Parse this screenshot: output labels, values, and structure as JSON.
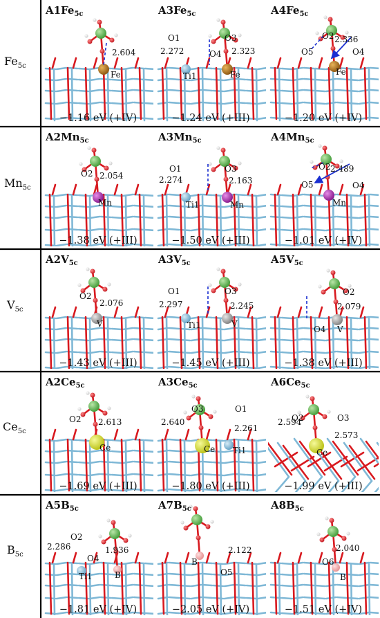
{
  "colors": {
    "oxygen": "#d8191f",
    "titanium": "#7fb8d6",
    "phosphorus": "#6bbf59",
    "hydrogen": "#f2f2f2",
    "fe": "#b5781c",
    "mn": "#b02fb4",
    "v": "#a8a8a8",
    "ce": "#d9e02a",
    "b": "#f4b6b6",
    "hbond": "#1a2fd1"
  },
  "rows": [
    {
      "label": {
        "main": "Fe",
        "sub": "5c"
      },
      "panels": [
        {
          "title": {
            "main": "A1Fe",
            "sub": "5c"
          },
          "energy": "−1.16 eV (+IV)",
          "metal": "fe",
          "atom_labels": [
            "Fe"
          ],
          "distances": [
            "2.604"
          ]
        },
        {
          "title": {
            "main": "A3Fe",
            "sub": "5c"
          },
          "energy": "−1.24 eV (+III)",
          "metal": "fe",
          "atom_labels": [
            "O1",
            "O3",
            "O4",
            "Ti1",
            "Fe"
          ],
          "distances": [
            "2.272",
            "2.323"
          ]
        },
        {
          "title": {
            "main": "A4Fe",
            "sub": "5c"
          },
          "energy": "−1.20 eV (+IV)",
          "metal": "fe",
          "atom_labels": [
            "O2",
            "O5",
            "O4",
            "Fe"
          ],
          "distances": [
            "2.336"
          ]
        }
      ]
    },
    {
      "label": {
        "main": "Mn",
        "sub": "5c"
      },
      "panels": [
        {
          "title": {
            "main": "A2Mn",
            "sub": "5c"
          },
          "energy": "−1.38 eV (+III)",
          "metal": "mn",
          "atom_labels": [
            "O2",
            "Mn"
          ],
          "distances": [
            "2.054"
          ]
        },
        {
          "title": {
            "main": "A3Mn",
            "sub": "5c"
          },
          "energy": "−1.50 eV (+III)",
          "metal": "mn",
          "atom_labels": [
            "O1",
            "O3",
            "Ti1",
            "Mn"
          ],
          "distances": [
            "2.274",
            "2.163"
          ]
        },
        {
          "title": {
            "main": "A4Mn",
            "sub": "5c"
          },
          "energy": "−1.01 eV (+IV)",
          "metal": "mn",
          "atom_labels": [
            "O2",
            "O5",
            "O4",
            "Mn"
          ],
          "distances": [
            "2.489"
          ]
        }
      ]
    },
    {
      "label": {
        "main": "V",
        "sub": "5c"
      },
      "panels": [
        {
          "title": {
            "main": "A2V",
            "sub": "5c"
          },
          "energy": "−1.43 eV (+III)",
          "metal": "v",
          "atom_labels": [
            "O2",
            "V"
          ],
          "distances": [
            "2.076"
          ]
        },
        {
          "title": {
            "main": "A3V",
            "sub": "5c"
          },
          "energy": "−1.45 eV (+III)",
          "metal": "v",
          "atom_labels": [
            "O1",
            "O3",
            "Ti1",
            "V"
          ],
          "distances": [
            "2.297",
            "2.245"
          ]
        },
        {
          "title": {
            "main": "A5V",
            "sub": "5c"
          },
          "energy": "−1.38 eV (+III)",
          "metal": "v",
          "atom_labels": [
            "O2",
            "O4",
            "V"
          ],
          "distances": [
            "2.079"
          ]
        }
      ]
    },
    {
      "label": {
        "main": "Ce",
        "sub": "5c"
      },
      "panels": [
        {
          "title": {
            "main": "A2Ce",
            "sub": "5c"
          },
          "energy": "−1.69 eV (+III)",
          "metal": "ce",
          "atom_labels": [
            "O2",
            "Ce"
          ],
          "distances": [
            "2.613"
          ]
        },
        {
          "title": {
            "main": "A3Ce",
            "sub": "5c"
          },
          "energy": "−1.80 eV (+III)",
          "metal": "ce",
          "atom_labels": [
            "O3",
            "O1",
            "Ce",
            "Ti1"
          ],
          "distances": [
            "2.640",
            "2.261"
          ]
        },
        {
          "title": {
            "main": "A6Ce",
            "sub": "5c"
          },
          "energy": "−1.99 eV (+III)",
          "metal": "ce",
          "atom_labels": [
            "O2",
            "O3",
            "Ce"
          ],
          "distances": [
            "2.594",
            "2.573"
          ]
        }
      ]
    },
    {
      "label": {
        "main": "B",
        "sub": "5c"
      },
      "panels": [
        {
          "title": {
            "main": "A5B",
            "sub": "5c"
          },
          "energy": "−1.81 eV (+IV)",
          "metal": "b",
          "atom_labels": [
            "O2",
            "O4",
            "Ti1",
            "B"
          ],
          "distances": [
            "2.286",
            "1.936"
          ]
        },
        {
          "title": {
            "main": "A7B",
            "sub": "5c"
          },
          "energy": "−2.05 eV (+IV)",
          "metal": "b",
          "atom_labels": [
            "B",
            "O5"
          ],
          "distances": [
            "2.122"
          ]
        },
        {
          "title": {
            "main": "A8B",
            "sub": "5c"
          },
          "energy": "−1.51 eV (+IV)",
          "metal": "b",
          "atom_labels": [
            "O6",
            "B"
          ],
          "distances": [
            "2.040"
          ]
        }
      ]
    }
  ]
}
